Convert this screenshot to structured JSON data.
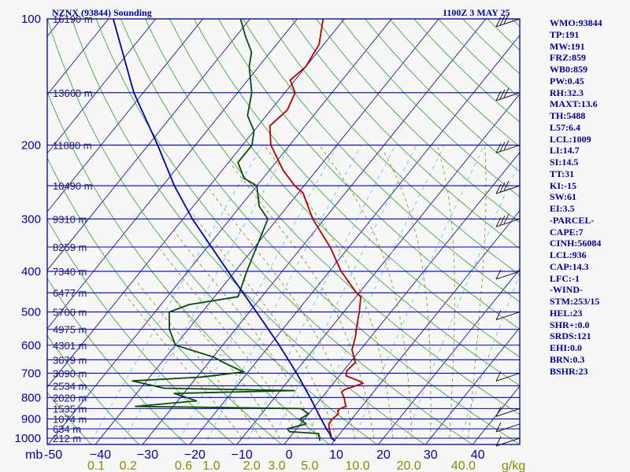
{
  "header": {
    "station": "NZNX (93844) Sounding",
    "time": "1100Z  3 MAY 25"
  },
  "indices": [
    "WMO:93844",
    "TP:191",
    "MW:191",
    "FRZ:859",
    "WB0:859",
    "PW:0.45",
    "RH:32.3",
    "MAXT:13.6",
    "TH:5488",
    "L57:6.4",
    "LCL:1009",
    "LI:14.7",
    "SI:14.5",
    "TT:31",
    "KI:-15",
    "SW:61",
    "EI:3.5",
    "-PARCEL-",
    "CAPE:7",
    "CINH:56084",
    "LCL:936",
    "CAP:14.3",
    "LFC:-1",
    "-WIND-",
    "STM:253/15",
    "HEL:23",
    "SHR+:0.0",
    "SRDS:121",
    "EHI:0.0",
    "BRN:0.3",
    "BSHR:23"
  ],
  "chart_data": {
    "type": "line",
    "title": "NZNX (93844) Sounding",
    "subtitle": "1100Z  3 MAY 25",
    "pressure_unit": "mb",
    "mixing_ratio_unit": "g/kg",
    "pressure_levels": [
      100,
      200,
      300,
      400,
      500,
      600,
      700,
      800,
      900,
      1000
    ],
    "height_labels": [
      {
        "p": 100,
        "label": "16190 m"
      },
      {
        "p": 150,
        "label": "13660 m"
      },
      {
        "p": 200,
        "label": "11880 m"
      },
      {
        "p": 250,
        "label": "10490 m"
      },
      {
        "p": 300,
        "label": "9310 m"
      },
      {
        "p": 350,
        "label": "8259 m"
      },
      {
        "p": 400,
        "label": "7340 m"
      },
      {
        "p": 450,
        "label": "6477 m"
      },
      {
        "p": 500,
        "label": "5700 m"
      },
      {
        "p": 550,
        "label": "4975 m"
      },
      {
        "p": 600,
        "label": "4301 m"
      },
      {
        "p": 650,
        "label": "3679 m"
      },
      {
        "p": 700,
        "label": "3090 m"
      },
      {
        "p": 750,
        "label": "2534 m"
      },
      {
        "p": 800,
        "label": "2020 m"
      },
      {
        "p": 850,
        "label": "1535 m"
      },
      {
        "p": 900,
        "label": "1074 m"
      },
      {
        "p": 950,
        "label": "634 m"
      },
      {
        "p": 1000,
        "label": "212 m"
      }
    ],
    "temp_ticks": [
      -50,
      -40,
      -30,
      -20,
      -10,
      0,
      10,
      20,
      30,
      40
    ],
    "temp_tick_labels": [
      "-50",
      "−40",
      "−30",
      "−20",
      "−10",
      "0",
      "10",
      "20",
      "30",
      "40"
    ],
    "mixing_ratio_labels": [
      {
        "w": 0.1,
        "label": "0.1"
      },
      {
        "w": 0.2,
        "label": "0.2"
      },
      {
        "w": 0.6,
        "label": "0.6"
      },
      {
        "w": 1.0,
        "label": "1.0"
      },
      {
        "w": 2.0,
        "label": "2.0"
      },
      {
        "w": 3.0,
        "label": "3.0"
      },
      {
        "w": 5.0,
        "label": "5.0"
      },
      {
        "w": 10.0,
        "label": "10.0"
      },
      {
        "w": 20.0,
        "label": "20.0"
      },
      {
        "w": 40.0,
        "label": "40.0"
      }
    ],
    "series": [
      {
        "name": "Temperature",
        "color": "#b40000",
        "points": [
          [
            1015,
            10.2
          ],
          [
            1000,
            9.0
          ],
          [
            975,
            8.0
          ],
          [
            950,
            6.9
          ],
          [
            925,
            6.0
          ],
          [
            900,
            5.9
          ],
          [
            875,
            6.3
          ],
          [
            860,
            5.6
          ],
          [
            850,
            5.8
          ],
          [
            840,
            6.6
          ],
          [
            800,
            4.7
          ],
          [
            776,
            3.2
          ],
          [
            765,
            3.5
          ],
          [
            740,
            6.3
          ],
          [
            730,
            5.0
          ],
          [
            710,
            1.4
          ],
          [
            690,
            0.7
          ],
          [
            660,
            1.1
          ],
          [
            615,
            -1.8
          ],
          [
            575,
            -3.2
          ],
          [
            545,
            -4.6
          ],
          [
            515,
            -6.0
          ],
          [
            500,
            -6.7
          ],
          [
            460,
            -9.0
          ],
          [
            450,
            -10.6
          ],
          [
            400,
            -17.5
          ],
          [
            350,
            -24.0
          ],
          [
            300,
            -32.5
          ],
          [
            260,
            -39.0
          ],
          [
            250,
            -42.0
          ],
          [
            230,
            -47.0
          ],
          [
            200,
            -54.0
          ],
          [
            180,
            -57.5
          ],
          [
            165,
            -56.5
          ],
          [
            150,
            -57.8
          ],
          [
            140,
            -61.0
          ],
          [
            130,
            -60.0
          ],
          [
            115,
            -61.0
          ],
          [
            100,
            -64.5
          ]
        ]
      },
      {
        "name": "Dew point",
        "color": "#0a4a0a",
        "points": [
          [
            1015,
            7.0
          ],
          [
            1000,
            6.4
          ],
          [
            975,
            5.5
          ],
          [
            965,
            -1.0
          ],
          [
            950,
            -2.0
          ],
          [
            925,
            1.2
          ],
          [
            900,
            -1.0
          ],
          [
            875,
            0.0
          ],
          [
            850,
            -2.5
          ],
          [
            840,
            -38.0
          ],
          [
            815,
            -26.0
          ],
          [
            782,
            -32.0
          ],
          [
            770,
            -7.0
          ],
          [
            760,
            -35.0
          ],
          [
            730,
            -43.0
          ],
          [
            715,
            -29.0
          ],
          [
            695,
            -21.0
          ],
          [
            665,
            -26.0
          ],
          [
            640,
            -30.0
          ],
          [
            600,
            -40.0
          ],
          [
            550,
            -44.0
          ],
          [
            500,
            -47.0
          ],
          [
            480,
            -44.0
          ],
          [
            460,
            -35.0
          ],
          [
            400,
            -37.5
          ],
          [
            300,
            -42.0
          ],
          [
            280,
            -46.0
          ],
          [
            250,
            -50.0
          ],
          [
            240,
            -54.0
          ],
          [
            220,
            -58.0
          ],
          [
            200,
            -58.0
          ],
          [
            185,
            -60.0
          ],
          [
            170,
            -64.0
          ],
          [
            150,
            -67.0
          ],
          [
            130,
            -72.0
          ],
          [
            120,
            -74.0
          ],
          [
            110,
            -78.0
          ],
          [
            100,
            -82.0
          ]
        ]
      },
      {
        "name": "Parcel",
        "color": "#0000aa",
        "points": [
          [
            1015,
            10.2
          ],
          [
            1010,
            9.8
          ],
          [
            1000,
            9.0
          ],
          [
            975,
            7.8
          ],
          [
            950,
            6.3
          ],
          [
            900,
            3.5
          ],
          [
            850,
            0.6
          ],
          [
            800,
            -2.5
          ],
          [
            700,
            -9.5
          ],
          [
            600,
            -18.0
          ],
          [
            500,
            -28.5
          ],
          [
            400,
            -41.5
          ],
          [
            300,
            -58.0
          ],
          [
            250,
            -67.5
          ],
          [
            200,
            -78.0
          ],
          [
            150,
            -92.0
          ],
          [
            100,
            -109.0
          ]
        ]
      }
    ],
    "axes": {
      "temperature_range": [
        -50,
        50
      ],
      "pressure_range": [
        1000,
        100
      ],
      "scale": "skew-T log-p"
    },
    "grid": true,
    "background_colors": {
      "isobar": "#0000a8",
      "isotherm": "#1818a0",
      "dry_adiabat": "#2aa02a",
      "moist_adiabat": "#8b8b00",
      "mixing_ratio": "#6fc0e8"
    },
    "wind_barb_color": "#1a1a1a",
    "wind_barb_levels": [
      1000,
      925,
      850,
      700,
      500,
      400,
      300,
      250,
      200,
      150,
      100
    ]
  }
}
